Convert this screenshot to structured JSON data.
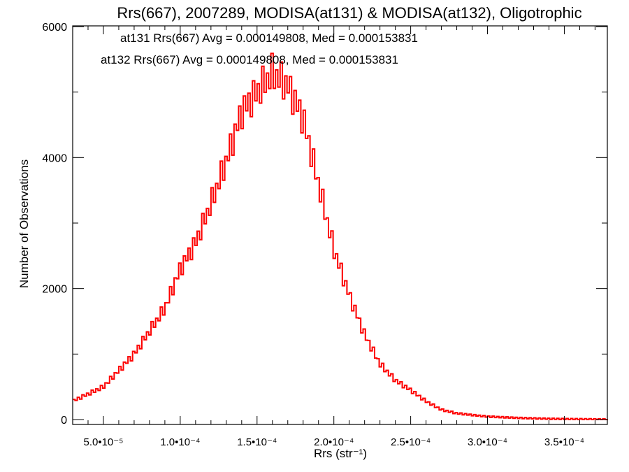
{
  "chart_data": {
    "type": "histogram",
    "title": "Rrs(667), 2007289, MODISA(at131) & MODISA(at132), Oligotrophic",
    "xlabel": "Rrs (str⁻¹)",
    "ylabel": "Number of Observations",
    "xlim": [
      3e-05,
      0.000378
    ],
    "ylim": [
      0,
      6000
    ],
    "x_ticks": [
      {
        "value": 5e-05,
        "label": "5.0•10⁻⁵"
      },
      {
        "value": 0.0001,
        "label": "1.0•10⁻⁴"
      },
      {
        "value": 0.00015,
        "label": "1.5•10⁻⁴"
      },
      {
        "value": 0.0002,
        "label": "2.0•10⁻⁴"
      },
      {
        "value": 0.00025,
        "label": "2.5•10⁻⁴"
      },
      {
        "value": 0.0003,
        "label": "3.0•10⁻⁴"
      },
      {
        "value": 0.00035,
        "label": "3.5•10⁻⁴"
      }
    ],
    "y_ticks": [
      {
        "value": 0,
        "label": "0"
      },
      {
        "value": 2000,
        "label": "2000"
      },
      {
        "value": 4000,
        "label": "4000"
      },
      {
        "value": 6000,
        "label": "6000"
      }
    ],
    "annotations": [
      {
        "text": "at131 Rrs(667) Avg = 0.000149808, Med = 0.000153831",
        "color": "#000000"
      },
      {
        "text": "at132 Rrs(667) Avg = 0.000149808, Med = 0.000153831",
        "color": "#ff0000"
      }
    ],
    "series": [
      {
        "color": "#000000",
        "x": [
          3e-05,
          5e-05,
          7e-05,
          9e-05,
          0.0001,
          0.00011,
          0.00012,
          0.00013,
          0.00014,
          0.00015,
          0.00016,
          0.00017,
          0.00018,
          0.00019,
          0.0002,
          0.00021,
          0.00022,
          0.00023,
          0.00024,
          0.00025,
          0.00026,
          0.00027,
          0.00028,
          0.0003,
          0.00032,
          0.00034,
          0.00036,
          0.000378
        ],
        "y": [
          280,
          500,
          1000,
          1700,
          2300,
          2700,
          3300,
          3950,
          4700,
          5000,
          5300,
          5100,
          4600,
          3600,
          2600,
          1900,
          1300,
          850,
          600,
          450,
          280,
          150,
          95,
          45,
          25,
          12,
          6,
          3
        ]
      },
      {
        "color": "#ff0000",
        "x": [
          3e-05,
          5e-05,
          7e-05,
          9e-05,
          0.0001,
          0.00011,
          0.00012,
          0.00013,
          0.00014,
          0.00015,
          0.00016,
          0.00017,
          0.00018,
          0.00019,
          0.0002,
          0.00021,
          0.00022,
          0.00023,
          0.00024,
          0.00025,
          0.00026,
          0.00027,
          0.00028,
          0.0003,
          0.00032,
          0.00034,
          0.00036,
          0.000378
        ],
        "y": [
          280,
          500,
          1000,
          1700,
          2300,
          2700,
          3300,
          3950,
          4700,
          5000,
          5300,
          5100,
          4600,
          3600,
          2600,
          1900,
          1300,
          850,
          600,
          450,
          280,
          150,
          95,
          45,
          25,
          12,
          6,
          3
        ]
      }
    ]
  }
}
